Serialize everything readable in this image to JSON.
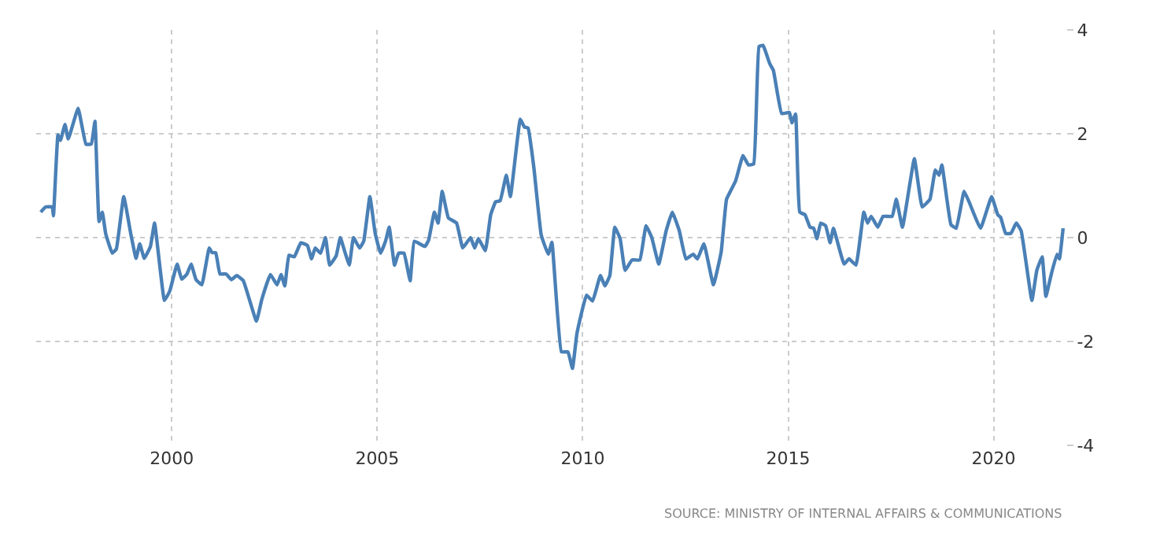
{
  "chart_data": {
    "type": "line",
    "x": [
      1996.81,
      1996.93,
      1997.09,
      1997.12,
      1997.23,
      1997.29,
      1997.4,
      1997.48,
      1997.72,
      1997.91,
      1998.04,
      1998.13,
      1998.23,
      1998.31,
      1998.39,
      1998.55,
      1998.65,
      1998.83,
      1999.0,
      1999.13,
      1999.22,
      1999.33,
      1999.48,
      1999.58,
      1999.82,
      1999.95,
      2000.13,
      2000.24,
      2000.37,
      2000.47,
      2000.59,
      2000.73,
      2000.91,
      2000.98,
      2001.07,
      2001.17,
      2001.32,
      2001.45,
      2001.58,
      2001.74,
      2002.06,
      2002.19,
      2002.4,
      2002.56,
      2002.66,
      2002.75,
      2002.85,
      2002.98,
      2003.14,
      2003.3,
      2003.4,
      2003.49,
      2003.62,
      2003.74,
      2003.84,
      2004.0,
      2004.1,
      2004.19,
      2004.32,
      2004.42,
      2004.57,
      2004.67,
      2004.82,
      2004.95,
      2005.08,
      2005.2,
      2005.29,
      2005.42,
      2005.52,
      2005.65,
      2005.8,
      2005.9,
      2006.16,
      2006.25,
      2006.39,
      2006.48,
      2006.58,
      2006.73,
      2006.93,
      2007.08,
      2007.27,
      2007.37,
      2007.46,
      2007.63,
      2007.76,
      2007.88,
      2007.99,
      2008.14,
      2008.24,
      2008.48,
      2008.58,
      2008.67,
      2008.81,
      2008.99,
      2009.16,
      2009.25,
      2009.48,
      2009.64,
      2009.75,
      2009.86,
      2010.09,
      2010.24,
      2010.43,
      2010.54,
      2010.66,
      2010.78,
      2010.91,
      2011.03,
      2011.2,
      2011.39,
      2011.54,
      2011.68,
      2011.85,
      2012.03,
      2012.18,
      2012.35,
      2012.51,
      2012.69,
      2012.79,
      2012.95,
      2013.18,
      2013.37,
      2013.5,
      2013.72,
      2013.9,
      2014.03,
      2014.16,
      2014.29,
      2014.39,
      2014.55,
      2014.64,
      2014.84,
      2015.03,
      2015.09,
      2015.18,
      2015.28,
      2015.41,
      2015.53,
      2015.62,
      2015.7,
      2015.79,
      2015.91,
      2016.02,
      2016.1,
      2016.36,
      2016.48,
      2016.65,
      2016.84,
      2016.93,
      2017.02,
      2017.18,
      2017.31,
      2017.53,
      2017.63,
      2017.78,
      2018.07,
      2018.26,
      2018.45,
      2018.58,
      2018.67,
      2018.74,
      2018.96,
      2019.09,
      2019.28,
      2019.4,
      2019.68,
      2019.95,
      2020.1,
      2020.17,
      2020.29,
      2020.42,
      2020.55,
      2020.67,
      2020.93,
      2021.05,
      2021.18,
      2021.27,
      2021.41,
      2021.54,
      2021.6,
      2021.69
    ],
    "series": [
      {
        "color": "#4a80b6",
        "values": [
          0.49,
          0.59,
          0.59,
          0.42,
          1.98,
          1.87,
          2.18,
          1.9,
          2.49,
          1.8,
          1.8,
          2.24,
          0.31,
          0.49,
          0.08,
          -0.3,
          -0.22,
          0.79,
          0.08,
          -0.4,
          -0.12,
          -0.4,
          -0.17,
          0.28,
          -1.21,
          -1.03,
          -0.51,
          -0.8,
          -0.7,
          -0.51,
          -0.81,
          -0.91,
          -0.2,
          -0.29,
          -0.29,
          -0.7,
          -0.7,
          -0.81,
          -0.73,
          -0.83,
          -1.61,
          -1.19,
          -0.71,
          -0.91,
          -0.71,
          -0.93,
          -0.34,
          -0.37,
          -0.1,
          -0.15,
          -0.41,
          -0.2,
          -0.3,
          0,
          -0.53,
          -0.35,
          0,
          -0.22,
          -0.53,
          0,
          -0.2,
          -0.07,
          0.79,
          0.08,
          -0.3,
          -0.07,
          0.2,
          -0.53,
          -0.3,
          -0.3,
          -0.83,
          -0.07,
          -0.17,
          -0.05,
          0.49,
          0.28,
          0.89,
          0.38,
          0.28,
          -0.2,
          0,
          -0.2,
          -0.02,
          -0.25,
          0.44,
          0.69,
          0.71,
          1.2,
          0.79,
          2.28,
          2.13,
          2.11,
          1.35,
          0.05,
          -0.32,
          -0.09,
          -2.2,
          -2.2,
          -2.52,
          -1.84,
          -1.11,
          -1.22,
          -0.73,
          -0.93,
          -0.73,
          0.2,
          -0.02,
          -0.63,
          -0.43,
          -0.43,
          0.23,
          0,
          -0.51,
          0.13,
          0.49,
          0.13,
          -0.41,
          -0.32,
          -0.41,
          -0.12,
          -0.91,
          -0.27,
          0.74,
          1.09,
          1.58,
          1.4,
          1.42,
          3.68,
          3.7,
          3.35,
          3.22,
          2.39,
          2.41,
          2.21,
          2.38,
          0.49,
          0.44,
          0.2,
          0.18,
          -0.02,
          0.28,
          0.23,
          -0.1,
          0.18,
          -0.51,
          -0.41,
          -0.53,
          0.49,
          0.28,
          0.41,
          0.2,
          0.41,
          0.41,
          0.74,
          0.2,
          1.52,
          0.59,
          0.74,
          1.3,
          1.2,
          1.4,
          0.25,
          0.18,
          0.89,
          0.69,
          0.18,
          0.79,
          0.44,
          0.39,
          0.08,
          0.08,
          0.28,
          0.13,
          -1.21,
          -0.63,
          -0.37,
          -1.13,
          -0.68,
          -0.32,
          -0.41,
          0.18
        ]
      }
    ],
    "xlim": [
      1996.7,
      2021.75
    ],
    "xticks": [
      2000,
      2005,
      2010,
      2015,
      2020
    ],
    "ylim": [
      -4,
      4
    ],
    "yticks": [
      -4,
      -2,
      0,
      2,
      4
    ],
    "grid": true,
    "legend": false,
    "marker": "none",
    "line_style": "solid",
    "annotations": [
      "SOURCE: MINISTRY OF INTERNAL AFFAIRS & COMMUNICATIONS"
    ]
  }
}
